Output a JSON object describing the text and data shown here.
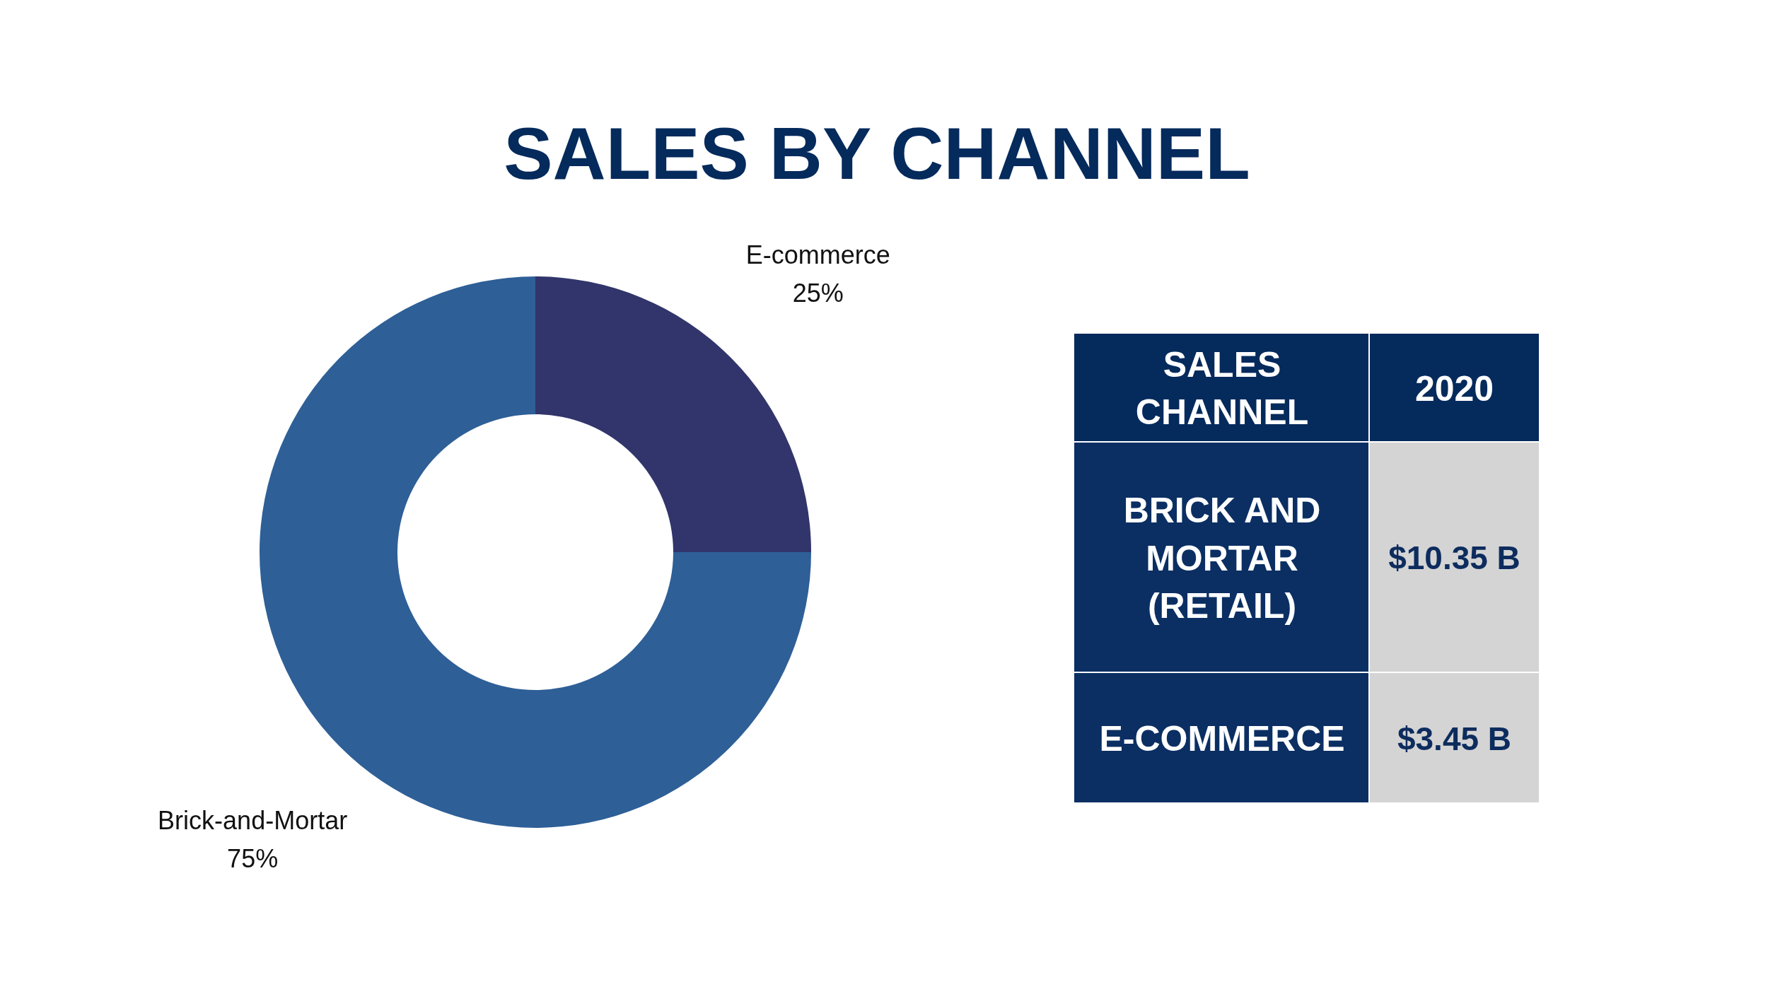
{
  "chart_data": [
    {
      "type": "donut",
      "title": "SALES BY CHANNEL",
      "categories": [
        "E-commerce",
        "Brick-and-Mortar"
      ],
      "values": [
        25,
        75
      ],
      "colors": [
        "#31356b",
        "#2e5f97"
      ],
      "value_labels": [
        "25%",
        "75%"
      ]
    },
    {
      "type": "other",
      "annotations": [
        "SALES CHANNEL",
        "2020",
        "BRICK AND MORTAR (RETAIL)",
        "$10.35 B",
        "E-COMMERCE",
        "$3.45 B"
      ]
    }
  ]
}
